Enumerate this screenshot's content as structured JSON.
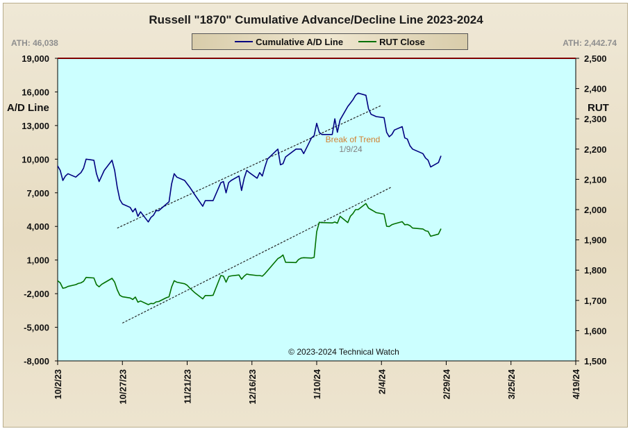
{
  "chart_data": {
    "type": "line",
    "title": "Russell \"1870\" Cumulative Advance/Decline Line 2023-2024",
    "ylabel_left": "A/D Line",
    "ylabel_right": "RUT",
    "ylim_left": [
      -8000,
      19000
    ],
    "ylim_right": [
      1500,
      2500
    ],
    "y_ticks_left": [
      "-8,000",
      "-5,000",
      "-2,000",
      "1,000",
      "4,000",
      "7,000",
      "10,000",
      "13,000",
      "16,000",
      "19,000"
    ],
    "y_ticks_right": [
      "1,500",
      "1,600",
      "1,700",
      "1,800",
      "1,900",
      "2,000",
      "2,100",
      "2,200",
      "2,300",
      "2,400",
      "2,500"
    ],
    "x_ticks": [
      "10/2/23",
      "10/27/23",
      "11/21/23",
      "12/16/23",
      "1/10/24",
      "2/4/24",
      "2/29/24",
      "3/25/24",
      "4/19/24"
    ],
    "xlim": [
      "2023-10-02",
      "2024-04-19"
    ],
    "grid": false,
    "legend_placement": "top-center",
    "ath_left": "ATH: 46,038",
    "ath_right": "ATH: 2,442.74",
    "copyright": "© 2023-2024  Technical Watch",
    "annotation_break": "Break of Trend",
    "annotation_date": "1/9/24",
    "series": [
      {
        "name": "Cumulative A/D Line",
        "axis": "left",
        "color": "#000080",
        "points": [
          [
            "2023-10-02",
            9400
          ],
          [
            "2023-10-03",
            9000
          ],
          [
            "2023-10-04",
            8100
          ],
          [
            "2023-10-05",
            8500
          ],
          [
            "2023-10-06",
            8700
          ],
          [
            "2023-10-09",
            8400
          ],
          [
            "2023-10-10",
            8600
          ],
          [
            "2023-10-11",
            8800
          ],
          [
            "2023-10-12",
            9200
          ],
          [
            "2023-10-13",
            10000
          ],
          [
            "2023-10-16",
            9900
          ],
          [
            "2023-10-17",
            8700
          ],
          [
            "2023-10-18",
            8000
          ],
          [
            "2023-10-19",
            8500
          ],
          [
            "2023-10-20",
            9000
          ],
          [
            "2023-10-23",
            9900
          ],
          [
            "2023-10-24",
            9000
          ],
          [
            "2023-10-25",
            7500
          ],
          [
            "2023-10-26",
            6400
          ],
          [
            "2023-10-27",
            6000
          ],
          [
            "2023-10-30",
            5700
          ],
          [
            "2023-10-31",
            5300
          ],
          [
            "2023-11-01",
            5600
          ],
          [
            "2023-11-02",
            4900
          ],
          [
            "2023-11-03",
            5300
          ],
          [
            "2023-11-06",
            4400
          ],
          [
            "2023-11-07",
            4800
          ],
          [
            "2023-11-08",
            5000
          ],
          [
            "2023-11-09",
            5400
          ],
          [
            "2023-11-10",
            5400
          ],
          [
            "2023-11-13",
            6000
          ],
          [
            "2023-11-14",
            6200
          ],
          [
            "2023-11-15",
            7800
          ],
          [
            "2023-11-16",
            8700
          ],
          [
            "2023-11-17",
            8400
          ],
          [
            "2023-11-20",
            8100
          ],
          [
            "2023-11-21",
            7800
          ],
          [
            "2023-11-22",
            7500
          ],
          [
            "2023-11-24",
            6800
          ],
          [
            "2023-11-27",
            5800
          ],
          [
            "2023-11-28",
            6300
          ],
          [
            "2023-11-29",
            6300
          ],
          [
            "2023-11-30",
            6300
          ],
          [
            "2023-12-01",
            6300
          ],
          [
            "2023-12-04",
            7900
          ],
          [
            "2023-12-05",
            8000
          ],
          [
            "2023-12-06",
            7000
          ],
          [
            "2023-12-07",
            7900
          ],
          [
            "2023-12-08",
            8100
          ],
          [
            "2023-12-11",
            8500
          ],
          [
            "2023-12-12",
            7200
          ],
          [
            "2023-12-13",
            8300
          ],
          [
            "2023-12-14",
            9000
          ],
          [
            "2023-12-15",
            8800
          ],
          [
            "2023-12-18",
            8300
          ],
          [
            "2023-12-19",
            8800
          ],
          [
            "2023-12-20",
            8500
          ],
          [
            "2023-12-21",
            9300
          ],
          [
            "2023-12-22",
            10000
          ],
          [
            "2023-12-26",
            10900
          ],
          [
            "2023-12-27",
            9500
          ],
          [
            "2023-12-28",
            9600
          ],
          [
            "2023-12-29",
            10200
          ],
          [
            "2024-01-02",
            10900
          ],
          [
            "2024-01-03",
            10900
          ],
          [
            "2024-01-04",
            10900
          ],
          [
            "2024-01-05",
            10500
          ],
          [
            "2024-01-08",
            11900
          ],
          [
            "2024-01-09",
            12100
          ],
          [
            "2024-01-10",
            13200
          ],
          [
            "2024-01-11",
            12400
          ],
          [
            "2024-01-12",
            12200
          ],
          [
            "2024-01-16",
            12200
          ],
          [
            "2024-01-17",
            13600
          ],
          [
            "2024-01-18",
            12400
          ],
          [
            "2024-01-19",
            13500
          ],
          [
            "2024-01-22",
            14700
          ],
          [
            "2024-01-23",
            15000
          ],
          [
            "2024-01-24",
            15300
          ],
          [
            "2024-01-25",
            15700
          ],
          [
            "2024-01-26",
            15900
          ],
          [
            "2024-01-29",
            15700
          ],
          [
            "2024-01-30",
            14500
          ],
          [
            "2024-01-31",
            14000
          ],
          [
            "2024-02-01",
            13900
          ],
          [
            "2024-02-02",
            13800
          ],
          [
            "2024-02-05",
            13700
          ],
          [
            "2024-02-06",
            12400
          ],
          [
            "2024-02-07",
            12000
          ],
          [
            "2024-02-08",
            12200
          ],
          [
            "2024-02-09",
            12600
          ],
          [
            "2024-02-12",
            12900
          ],
          [
            "2024-02-13",
            11900
          ],
          [
            "2024-02-14",
            11800
          ],
          [
            "2024-02-15",
            11200
          ],
          [
            "2024-02-16",
            10900
          ],
          [
            "2024-02-20",
            10500
          ],
          [
            "2024-02-21",
            10100
          ],
          [
            "2024-02-22",
            9900
          ],
          [
            "2024-02-23",
            9300
          ],
          [
            "2024-02-26",
            9700
          ],
          [
            "2024-02-27",
            10300
          ]
        ]
      },
      {
        "name": "RUT Close",
        "axis": "right",
        "color": "#007000",
        "points": [
          [
            "2023-10-02",
            1765
          ],
          [
            "2023-10-03",
            1758
          ],
          [
            "2023-10-04",
            1740
          ],
          [
            "2023-10-05",
            1742
          ],
          [
            "2023-10-06",
            1746
          ],
          [
            "2023-10-09",
            1752
          ],
          [
            "2023-10-10",
            1756
          ],
          [
            "2023-10-11",
            1758
          ],
          [
            "2023-10-12",
            1763
          ],
          [
            "2023-10-13",
            1776
          ],
          [
            "2023-10-16",
            1774
          ],
          [
            "2023-10-17",
            1752
          ],
          [
            "2023-10-18",
            1745
          ],
          [
            "2023-10-19",
            1753
          ],
          [
            "2023-10-20",
            1758
          ],
          [
            "2023-10-23",
            1773
          ],
          [
            "2023-10-24",
            1760
          ],
          [
            "2023-10-25",
            1735
          ],
          [
            "2023-10-26",
            1717
          ],
          [
            "2023-10-27",
            1712
          ],
          [
            "2023-10-30",
            1708
          ],
          [
            "2023-10-31",
            1703
          ],
          [
            "2023-11-01",
            1711
          ],
          [
            "2023-11-02",
            1694
          ],
          [
            "2023-11-03",
            1698
          ],
          [
            "2023-11-06",
            1686
          ],
          [
            "2023-11-07",
            1690
          ],
          [
            "2023-11-08",
            1689
          ],
          [
            "2023-11-09",
            1695
          ],
          [
            "2023-11-10",
            1696
          ],
          [
            "2023-11-13",
            1709
          ],
          [
            "2023-11-14",
            1712
          ],
          [
            "2023-11-15",
            1744
          ],
          [
            "2023-11-16",
            1765
          ],
          [
            "2023-11-17",
            1760
          ],
          [
            "2023-11-20",
            1755
          ],
          [
            "2023-11-21",
            1750
          ],
          [
            "2023-11-22",
            1741
          ],
          [
            "2023-11-24",
            1725
          ],
          [
            "2023-11-27",
            1705
          ],
          [
            "2023-11-28",
            1716
          ],
          [
            "2023-11-29",
            1716
          ],
          [
            "2023-11-30",
            1716
          ],
          [
            "2023-12-01",
            1717
          ],
          [
            "2023-12-04",
            1782
          ],
          [
            "2023-12-05",
            1780
          ],
          [
            "2023-12-06",
            1760
          ],
          [
            "2023-12-07",
            1779
          ],
          [
            "2023-12-08",
            1781
          ],
          [
            "2023-12-11",
            1784
          ],
          [
            "2023-12-12",
            1770
          ],
          [
            "2023-12-13",
            1780
          ],
          [
            "2023-12-14",
            1787
          ],
          [
            "2023-12-15",
            1785
          ],
          [
            "2023-12-18",
            1782
          ],
          [
            "2023-12-19",
            1782
          ],
          [
            "2023-12-20",
            1780
          ],
          [
            "2023-12-21",
            1788
          ],
          [
            "2023-12-22",
            1798
          ],
          [
            "2023-12-26",
            1838
          ],
          [
            "2023-12-27",
            1843
          ],
          [
            "2023-12-28",
            1850
          ],
          [
            "2023-12-29",
            1826
          ],
          [
            "2024-01-02",
            1825
          ],
          [
            "2024-01-03",
            1835
          ],
          [
            "2024-01-04",
            1840
          ],
          [
            "2024-01-05",
            1841
          ],
          [
            "2024-01-08",
            1840
          ],
          [
            "2024-01-09",
            1842
          ],
          [
            "2024-01-10",
            1927
          ],
          [
            "2024-01-11",
            1958
          ],
          [
            "2024-01-12",
            1957
          ],
          [
            "2024-01-16",
            1956
          ],
          [
            "2024-01-17",
            1959
          ],
          [
            "2024-01-18",
            1955
          ],
          [
            "2024-01-19",
            1978
          ],
          [
            "2024-01-22",
            1957
          ],
          [
            "2024-01-23",
            1978
          ],
          [
            "2024-01-24",
            1987
          ],
          [
            "2024-01-25",
            2000
          ],
          [
            "2024-01-26",
            2000
          ],
          [
            "2024-01-29",
            2020
          ],
          [
            "2024-01-30",
            2005
          ],
          [
            "2024-01-31",
            2000
          ],
          [
            "2024-02-01",
            1995
          ],
          [
            "2024-02-02",
            1990
          ],
          [
            "2024-02-05",
            1985
          ],
          [
            "2024-02-06",
            1945
          ],
          [
            "2024-02-07",
            1944
          ],
          [
            "2024-02-08",
            1950
          ],
          [
            "2024-02-09",
            1953
          ],
          [
            "2024-02-12",
            1960
          ],
          [
            "2024-02-13",
            1950
          ],
          [
            "2024-02-14",
            1951
          ],
          [
            "2024-02-15",
            1947
          ],
          [
            "2024-02-16",
            1939
          ],
          [
            "2024-02-20",
            1936
          ],
          [
            "2024-02-21",
            1930
          ],
          [
            "2024-02-22",
            1928
          ],
          [
            "2024-02-23",
            1912
          ],
          [
            "2024-02-26",
            1919
          ],
          [
            "2024-02-27",
            1937
          ]
        ]
      }
    ],
    "trendlines": [
      {
        "axis": "left",
        "from": [
          "2023-10-25",
          3850
        ],
        "to": [
          "2024-02-04",
          14800
        ],
        "style": "dashed"
      },
      {
        "axis": "right",
        "from": [
          "2023-10-27",
          1625
        ],
        "to": [
          "2024-02-08",
          2075
        ],
        "style": "dashed"
      }
    ]
  },
  "colors": {
    "plot_bg": "#ccffff",
    "frame_top_line": "#800000",
    "axis": "#000000",
    "annotation_break": "#d08030",
    "annotation_date": "#808080"
  }
}
